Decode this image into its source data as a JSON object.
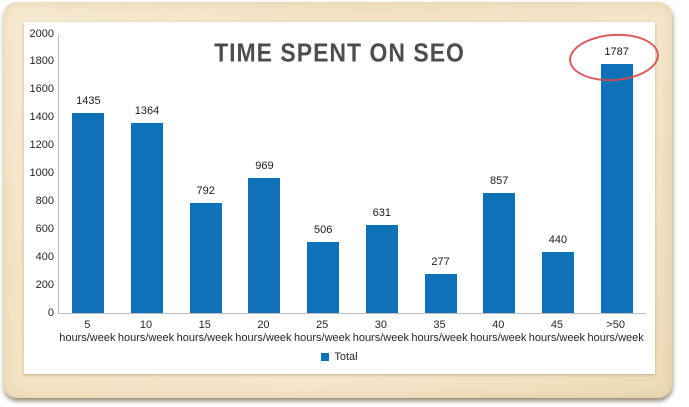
{
  "chart": {
    "bar_color": "#0f72b9",
    "title_color": "#4d4d4d",
    "axis_color": "#bfbfbf",
    "annotation_color": "#d6494d",
    "paper_color": "#f3e3c3",
    "panel_color": "#ffffff"
  },
  "chart_data": {
    "type": "bar",
    "title": "TIME SPENT ON SEO",
    "categories": [
      "5 hours/week",
      "10 hours/week",
      "15 hours/week",
      "20 hours/week",
      "25 hours/week",
      "30 hours/week",
      "35 hours/week",
      "40 hours/week",
      "45 hours/week",
      ">50 hours/week"
    ],
    "category_display_lines": [
      [
        "5 hours/week"
      ],
      [
        "10",
        "hours/week"
      ],
      [
        "15",
        "hours/week"
      ],
      [
        "20",
        "hours/week"
      ],
      [
        "25",
        "hours/week"
      ],
      [
        "30",
        "hours/week"
      ],
      [
        "35",
        "hours/week"
      ],
      [
        "40",
        "hours/week"
      ],
      [
        "45",
        "hours/week"
      ],
      [
        ">50",
        "hours/week"
      ]
    ],
    "series": [
      {
        "name": "Total",
        "values": [
          1435,
          1364,
          792,
          969,
          506,
          631,
          277,
          857,
          440,
          1787
        ]
      }
    ],
    "ylim": [
      0,
      2000
    ],
    "ytick_step": 200,
    "ytick_labels": [
      "0",
      "200",
      "400",
      "600",
      "800",
      "1000",
      "1200",
      "1400",
      "1600",
      "1800",
      "2000"
    ],
    "grid": false,
    "legend_position": "bottom",
    "annotation": {
      "type": "ellipse",
      "category": ">50 hours/week",
      "highlighted_value": 1787
    }
  }
}
